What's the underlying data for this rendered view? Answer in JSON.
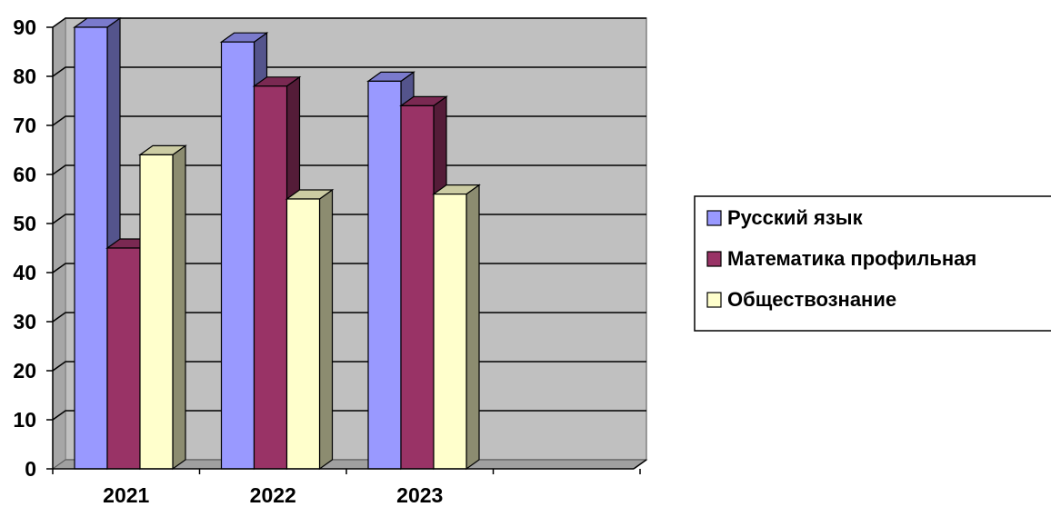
{
  "chart_data": {
    "type": "bar",
    "categories": [
      "2021",
      "2022",
      "2023"
    ],
    "series": [
      {
        "name": "Русский язык",
        "values": [
          90,
          87,
          79
        ]
      },
      {
        "name": "Математика профильная",
        "values": [
          45,
          78,
          74
        ]
      },
      {
        "name": "Обществознание",
        "values": [
          64,
          55,
          56
        ]
      }
    ],
    "ylim": [
      0,
      90
    ],
    "yticks": [
      0,
      10,
      20,
      30,
      40,
      50,
      60,
      70,
      80,
      90
    ],
    "grid": true,
    "legend_position": "right",
    "style": "3d-clustered-column",
    "colors": {
      "series": [
        "#9999ff",
        "#993366",
        "#ffffcc"
      ],
      "plot_background": "#c0c0c0",
      "grid": "#000000"
    }
  }
}
